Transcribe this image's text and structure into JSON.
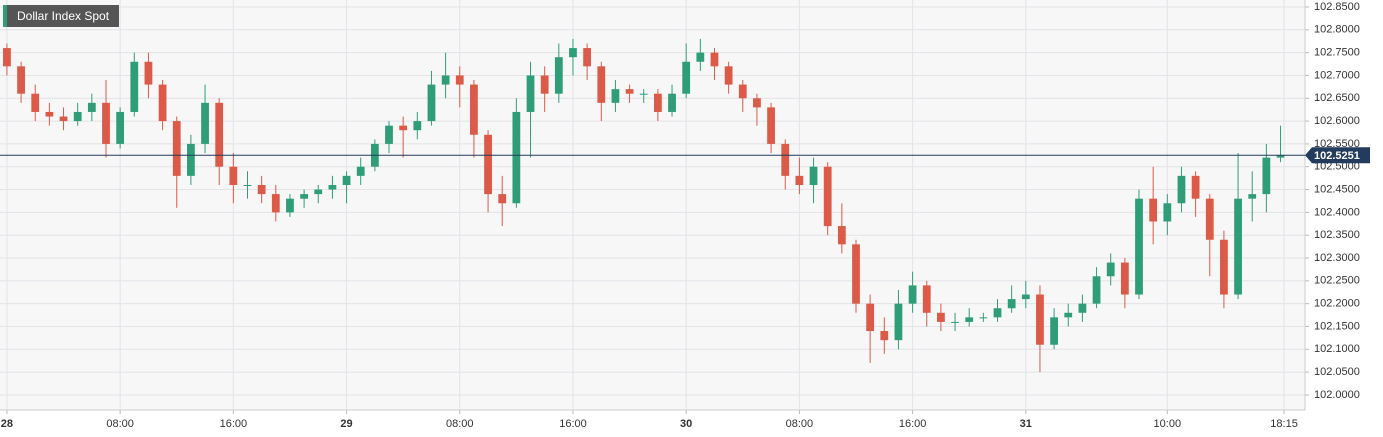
{
  "chart_data": {
    "type": "candlestick",
    "title": "Dollar Index Spot",
    "x": [
      0,
      1,
      2,
      3,
      4,
      5,
      6,
      7,
      8,
      9,
      10,
      11,
      12,
      13,
      14,
      15,
      16,
      17,
      18,
      19,
      20,
      21,
      22,
      23,
      24,
      25,
      26,
      27,
      28,
      29,
      30,
      31,
      32,
      33,
      34,
      35,
      36,
      37,
      38,
      39,
      40,
      41,
      42,
      43,
      44,
      45,
      46,
      47,
      48,
      49,
      50,
      51,
      52,
      53,
      54,
      55,
      56,
      57,
      58,
      59,
      60,
      61,
      62,
      63,
      64,
      65,
      66,
      67,
      68,
      69,
      70,
      71,
      72,
      73,
      74,
      75,
      76,
      77,
      78,
      79,
      80,
      81,
      82,
      83,
      84,
      85,
      86,
      87,
      88,
      89,
      90
    ],
    "open": [
      102.76,
      102.72,
      102.66,
      102.62,
      102.61,
      102.6,
      102.62,
      102.64,
      102.55,
      102.62,
      102.73,
      102.68,
      102.6,
      102.48,
      102.55,
      102.64,
      102.5,
      102.46,
      102.46,
      102.44,
      102.4,
      102.43,
      102.44,
      102.45,
      102.46,
      102.48,
      102.5,
      102.55,
      102.59,
      102.58,
      102.6,
      102.68,
      102.7,
      102.68,
      102.57,
      102.44,
      102.42,
      102.62,
      102.7,
      102.66,
      102.74,
      102.76,
      102.72,
      102.64,
      102.67,
      102.66,
      102.66,
      102.62,
      102.66,
      102.73,
      102.75,
      102.72,
      102.68,
      102.65,
      102.63,
      102.55,
      102.48,
      102.46,
      102.5,
      102.37,
      102.33,
      102.2,
      102.14,
      102.12,
      102.2,
      102.24,
      102.18,
      102.16,
      102.16,
      102.17,
      102.17,
      102.19,
      102.21,
      102.22,
      102.11,
      102.17,
      102.18,
      102.2,
      102.26,
      102.29,
      102.22,
      102.43,
      102.38,
      102.42,
      102.48,
      102.43,
      102.34,
      102.22,
      102.43,
      102.44,
      102.52
    ],
    "high": [
      102.77,
      102.73,
      102.68,
      102.64,
      102.63,
      102.64,
      102.66,
      102.69,
      102.63,
      102.75,
      102.75,
      102.69,
      102.61,
      102.57,
      102.68,
      102.65,
      102.53,
      102.49,
      102.48,
      102.46,
      102.44,
      102.45,
      102.46,
      102.48,
      102.49,
      102.52,
      102.56,
      102.6,
      102.61,
      102.62,
      102.71,
      102.75,
      102.72,
      102.69,
      102.58,
      102.48,
      102.65,
      102.73,
      102.72,
      102.77,
      102.78,
      102.77,
      102.73,
      102.69,
      102.68,
      102.67,
      102.67,
      102.68,
      102.77,
      102.78,
      102.76,
      102.73,
      102.69,
      102.66,
      102.64,
      102.56,
      102.52,
      102.52,
      102.51,
      102.42,
      102.34,
      102.22,
      102.17,
      102.23,
      102.27,
      102.25,
      102.2,
      102.18,
      102.19,
      102.18,
      102.21,
      102.24,
      102.25,
      102.24,
      102.19,
      102.2,
      102.22,
      102.28,
      102.31,
      102.3,
      102.45,
      102.5,
      102.44,
      102.5,
      102.49,
      102.44,
      102.36,
      102.53,
      102.49,
      102.55,
      102.59
    ],
    "low": [
      102.7,
      102.64,
      102.6,
      102.59,
      102.58,
      102.59,
      102.6,
      102.52,
      102.54,
      102.61,
      102.65,
      102.58,
      102.41,
      102.46,
      102.53,
      102.46,
      102.42,
      102.43,
      102.42,
      102.38,
      102.39,
      102.41,
      102.42,
      102.43,
      102.42,
      102.46,
      102.49,
      102.53,
      102.52,
      102.56,
      102.59,
      102.65,
      102.63,
      102.52,
      102.4,
      102.37,
      102.41,
      102.52,
      102.62,
      102.64,
      102.7,
      102.69,
      102.6,
      102.62,
      102.64,
      102.64,
      102.6,
      102.61,
      102.65,
      102.71,
      102.69,
      102.66,
      102.62,
      102.59,
      102.53,
      102.45,
      102.44,
      102.42,
      102.35,
      102.31,
      102.18,
      102.07,
      102.09,
      102.1,
      102.18,
      102.15,
      102.14,
      102.14,
      102.15,
      102.16,
      102.16,
      102.18,
      102.19,
      102.05,
      102.1,
      102.15,
      102.16,
      102.19,
      102.24,
      102.19,
      102.21,
      102.33,
      102.35,
      102.4,
      102.39,
      102.26,
      102.19,
      102.21,
      102.38,
      102.4,
      102.51
    ],
    "close": [
      102.72,
      102.66,
      102.62,
      102.61,
      102.6,
      102.62,
      102.64,
      102.55,
      102.62,
      102.73,
      102.68,
      102.6,
      102.48,
      102.55,
      102.64,
      102.5,
      102.46,
      102.46,
      102.44,
      102.4,
      102.43,
      102.44,
      102.45,
      102.46,
      102.48,
      102.5,
      102.55,
      102.59,
      102.58,
      102.6,
      102.68,
      102.7,
      102.68,
      102.57,
      102.44,
      102.42,
      102.62,
      102.7,
      102.66,
      102.74,
      102.76,
      102.72,
      102.64,
      102.67,
      102.66,
      102.66,
      102.62,
      102.66,
      102.73,
      102.75,
      102.72,
      102.68,
      102.65,
      102.63,
      102.55,
      102.48,
      102.46,
      102.5,
      102.37,
      102.33,
      102.2,
      102.14,
      102.12,
      102.2,
      102.24,
      102.18,
      102.16,
      102.16,
      102.17,
      102.17,
      102.19,
      102.21,
      102.22,
      102.11,
      102.17,
      102.18,
      102.2,
      102.26,
      102.29,
      102.22,
      102.43,
      102.38,
      102.42,
      102.48,
      102.43,
      102.34,
      102.22,
      102.43,
      102.44,
      102.52,
      102.5251
    ],
    "up_color": "#2f9e78",
    "down_color": "#db5a48",
    "last_price": {
      "value": 102.5251,
      "label": "102.5251"
    },
    "last_price_color": "#233c5e",
    "xlim": [
      -0.49,
      91.73
    ],
    "xticks": [
      {
        "value": 0,
        "label": "28"
      },
      {
        "value": 8,
        "label": "08:00"
      },
      {
        "value": 16,
        "label": "16:00"
      },
      {
        "value": 24,
        "label": "29"
      },
      {
        "value": 32,
        "label": "08:00"
      },
      {
        "value": 40,
        "label": "16:00"
      },
      {
        "value": 48,
        "label": "30"
      },
      {
        "value": 56,
        "label": "08:00"
      },
      {
        "value": 64,
        "label": "16:00"
      },
      {
        "value": 72,
        "label": "31"
      },
      {
        "value": 82,
        "label": "10:00"
      },
      {
        "value": 90.25,
        "label": "18:15"
      }
    ],
    "ylim": [
      101.967,
      102.8653
    ],
    "yticks": [
      {
        "value": 102.0,
        "label": "102.0000"
      },
      {
        "value": 102.05,
        "label": "102.0500"
      },
      {
        "value": 102.1,
        "label": "102.1000"
      },
      {
        "value": 102.15,
        "label": "102.1500"
      },
      {
        "value": 102.2,
        "label": "102.2000"
      },
      {
        "value": 102.25,
        "label": "102.2500"
      },
      {
        "value": 102.3,
        "label": "102.3000"
      },
      {
        "value": 102.35,
        "label": "102.3500"
      },
      {
        "value": 102.4,
        "label": "102.4000"
      },
      {
        "value": 102.45,
        "label": "102.4500"
      },
      {
        "value": 102.5,
        "label": "102.5000"
      },
      {
        "value": 102.55,
        "label": "102.5500"
      },
      {
        "value": 102.6,
        "label": "102.6000"
      },
      {
        "value": 102.65,
        "label": "102.6500"
      },
      {
        "value": 102.7,
        "label": "102.7000"
      },
      {
        "value": 102.75,
        "label": "102.7500"
      },
      {
        "value": 102.8,
        "label": "102.8000"
      },
      {
        "value": 102.85,
        "label": "102.8500"
      }
    ],
    "grid": true
  }
}
